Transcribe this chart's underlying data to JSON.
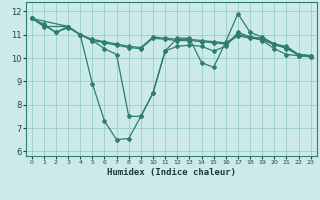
{
  "xlabel": "Humidex (Indice chaleur)",
  "xlim": [
    -0.5,
    23.5
  ],
  "ylim": [
    5.8,
    12.4
  ],
  "yticks": [
    6,
    7,
    8,
    9,
    10,
    11,
    12
  ],
  "xticks": [
    0,
    1,
    2,
    3,
    4,
    5,
    6,
    7,
    8,
    9,
    10,
    11,
    12,
    13,
    14,
    15,
    16,
    17,
    18,
    19,
    20,
    21,
    22,
    23
  ],
  "bg_color": "#cceae7",
  "grid_color": "#99ccc8",
  "line_color": "#2e7d72",
  "series": [
    {
      "x": [
        0,
        1,
        2,
        3,
        4,
        5,
        6,
        7,
        8,
        9,
        10,
        11,
        12,
        13,
        14,
        15,
        16,
        17,
        18,
        19,
        20,
        21,
        22,
        23
      ],
      "y": [
        11.7,
        11.45,
        11.1,
        11.35,
        11.0,
        10.8,
        10.7,
        10.6,
        10.5,
        10.45,
        10.9,
        10.85,
        10.8,
        10.8,
        10.75,
        10.7,
        10.65,
        11.0,
        10.9,
        10.85,
        10.6,
        10.5,
        10.15,
        10.1
      ]
    },
    {
      "x": [
        0,
        1,
        2,
        3,
        4,
        5,
        6,
        7,
        8,
        9,
        10,
        11,
        12,
        13,
        14,
        15,
        16,
        17,
        18,
        19,
        20,
        21,
        22,
        23
      ],
      "y": [
        11.7,
        11.4,
        11.1,
        11.3,
        11.0,
        10.75,
        10.65,
        10.55,
        10.45,
        10.4,
        10.85,
        10.8,
        10.75,
        10.75,
        10.7,
        10.65,
        10.6,
        10.95,
        10.85,
        10.8,
        10.55,
        10.45,
        10.1,
        10.05
      ]
    },
    {
      "x": [
        0,
        1,
        3,
        4,
        5,
        6,
        7,
        8,
        9,
        10,
        11,
        12,
        13,
        14,
        15,
        16,
        17,
        18,
        19,
        20,
        21,
        22,
        23
      ],
      "y": [
        11.7,
        11.35,
        11.35,
        11.0,
        8.9,
        7.3,
        6.5,
        6.55,
        7.5,
        8.5,
        10.3,
        10.85,
        10.85,
        9.8,
        9.6,
        10.7,
        11.9,
        11.1,
        10.9,
        10.6,
        10.4,
        10.15,
        10.1
      ]
    },
    {
      "x": [
        0,
        3,
        4,
        5,
        6,
        7,
        8,
        9,
        10,
        11,
        12,
        13,
        14,
        15,
        16,
        17,
        18,
        19,
        20,
        21,
        22,
        23
      ],
      "y": [
        11.7,
        11.35,
        11.0,
        10.75,
        10.4,
        10.15,
        7.5,
        7.5,
        8.5,
        10.3,
        10.5,
        10.55,
        10.5,
        10.3,
        10.5,
        11.1,
        10.9,
        10.75,
        10.4,
        10.15,
        10.1,
        10.05
      ]
    }
  ]
}
